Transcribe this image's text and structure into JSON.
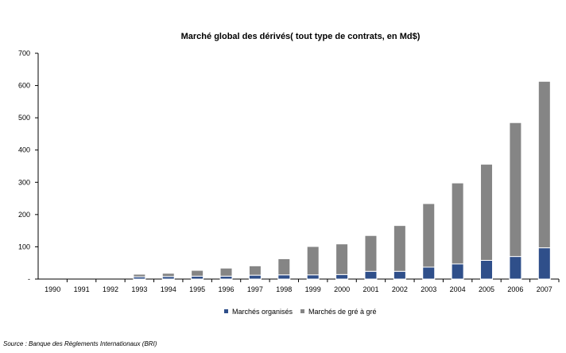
{
  "chart_data": {
    "type": "bar",
    "stacked": true,
    "title": "Marché global des dérivés( tout type de contrats, en Md$)",
    "xlabel": "",
    "ylabel": "",
    "ylim": [
      0,
      700
    ],
    "yticks": [
      "-",
      "100",
      "200",
      "300",
      "400",
      "500",
      "600",
      "700"
    ],
    "ytick_values": [
      0,
      100,
      200,
      300,
      400,
      500,
      600,
      700
    ],
    "grid": false,
    "legend_position": "bottom",
    "categories": [
      "1990",
      "1991",
      "1992",
      "1993",
      "1994",
      "1995",
      "1996",
      "1997",
      "1998",
      "1999",
      "2000",
      "2001",
      "2002",
      "2003",
      "2004",
      "2005",
      "2006",
      "2007"
    ],
    "series": [
      {
        "name": "Marchés organisés",
        "color": "#2f4f8a",
        "values": [
          0,
          0,
          0,
          7,
          8,
          9,
          9,
          12,
          13,
          13,
          14,
          24,
          24,
          37,
          47,
          58,
          70,
          97
        ]
      },
      {
        "name": "Marchés de gré à gré",
        "color": "#858585",
        "values": [
          0,
          0,
          0,
          8,
          10,
          18,
          25,
          29,
          50,
          88,
          95,
          111,
          142,
          197,
          251,
          298,
          415,
          516
        ]
      }
    ]
  },
  "source": "Source : Banque des Règlements Internationaux (BRI)"
}
